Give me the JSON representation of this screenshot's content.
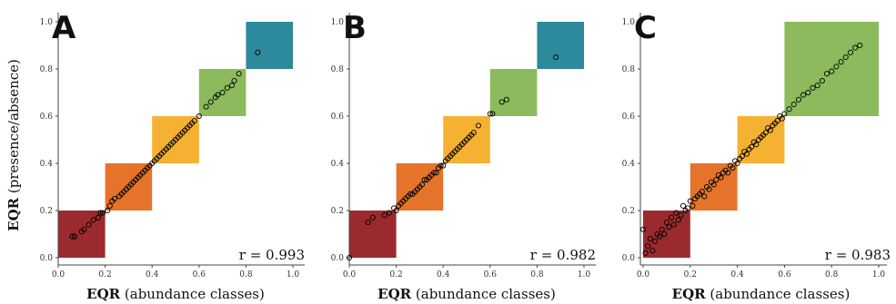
{
  "chart_data": {
    "type": "scatter",
    "ylabel_bold": "EQR",
    "ylabel_rest": " (presence/absence)",
    "xlabel_bold": "EQR",
    "xlabel_rest": " (abundance classes)",
    "xlim": [
      0,
      1
    ],
    "ylim": [
      0,
      1
    ],
    "ticks": [
      "0.0",
      "0.2",
      "0.4",
      "0.6",
      "0.8",
      "1.0"
    ],
    "tick_values": [
      0,
      0.2,
      0.4,
      0.6,
      0.8,
      1.0
    ],
    "grid": false,
    "class_colors": [
      "#9b2a2e",
      "#e5742a",
      "#f5b132",
      "#8cba5c",
      "#2c8a9c"
    ],
    "panels": [
      {
        "letter": "A",
        "r_text": "r = 0.993",
        "boxes": [
          [
            0.0,
            0.2
          ],
          [
            0.2,
            0.4
          ],
          [
            0.4,
            0.6
          ],
          [
            0.6,
            0.8
          ],
          [
            0.8,
            1.0
          ]
        ],
        "x": [
          0.06,
          0.07,
          0.1,
          0.11,
          0.13,
          0.15,
          0.17,
          0.18,
          0.19,
          0.21,
          0.22,
          0.23,
          0.24,
          0.26,
          0.27,
          0.28,
          0.29,
          0.3,
          0.31,
          0.32,
          0.33,
          0.34,
          0.35,
          0.36,
          0.37,
          0.38,
          0.39,
          0.4,
          0.41,
          0.42,
          0.43,
          0.44,
          0.45,
          0.46,
          0.47,
          0.48,
          0.49,
          0.5,
          0.51,
          0.52,
          0.53,
          0.54,
          0.55,
          0.56,
          0.57,
          0.58,
          0.6,
          0.63,
          0.65,
          0.67,
          0.68,
          0.7,
          0.72,
          0.74,
          0.75,
          0.77,
          0.85
        ],
        "y": [
          0.09,
          0.09,
          0.11,
          0.12,
          0.14,
          0.16,
          0.17,
          0.19,
          0.19,
          0.2,
          0.22,
          0.24,
          0.25,
          0.26,
          0.27,
          0.28,
          0.29,
          0.3,
          0.31,
          0.32,
          0.33,
          0.34,
          0.35,
          0.36,
          0.37,
          0.38,
          0.39,
          0.4,
          0.41,
          0.42,
          0.43,
          0.44,
          0.45,
          0.46,
          0.47,
          0.48,
          0.49,
          0.5,
          0.51,
          0.52,
          0.53,
          0.54,
          0.55,
          0.56,
          0.57,
          0.58,
          0.6,
          0.64,
          0.66,
          0.68,
          0.69,
          0.7,
          0.72,
          0.73,
          0.75,
          0.78,
          0.87
        ]
      },
      {
        "letter": "B",
        "r_text": "r = 0.982",
        "boxes": [
          [
            0.0,
            0.2
          ],
          [
            0.2,
            0.4
          ],
          [
            0.4,
            0.6
          ],
          [
            0.6,
            0.8
          ],
          [
            0.8,
            1.0
          ]
        ],
        "x": [
          0.0,
          0.08,
          0.1,
          0.15,
          0.17,
          0.19,
          0.2,
          0.21,
          0.22,
          0.23,
          0.24,
          0.25,
          0.26,
          0.27,
          0.28,
          0.29,
          0.3,
          0.31,
          0.32,
          0.33,
          0.34,
          0.35,
          0.36,
          0.37,
          0.38,
          0.39,
          0.4,
          0.41,
          0.42,
          0.43,
          0.44,
          0.45,
          0.46,
          0.47,
          0.48,
          0.49,
          0.5,
          0.51,
          0.52,
          0.53,
          0.55,
          0.6,
          0.61,
          0.65,
          0.67,
          0.88
        ],
        "y": [
          0.0,
          0.15,
          0.17,
          0.18,
          0.19,
          0.21,
          0.2,
          0.22,
          0.23,
          0.24,
          0.25,
          0.26,
          0.27,
          0.27,
          0.28,
          0.29,
          0.3,
          0.31,
          0.33,
          0.33,
          0.34,
          0.35,
          0.36,
          0.36,
          0.38,
          0.39,
          0.39,
          0.41,
          0.42,
          0.43,
          0.44,
          0.45,
          0.46,
          0.47,
          0.48,
          0.49,
          0.5,
          0.51,
          0.52,
          0.53,
          0.56,
          0.61,
          0.61,
          0.66,
          0.67,
          0.85
        ]
      },
      {
        "letter": "C",
        "r_text": "r = 0.983",
        "boxes": [
          [
            0.0,
            0.2
          ],
          [
            0.2,
            0.4
          ],
          [
            0.4,
            0.6
          ],
          [
            0.6,
            1.0
          ]
        ],
        "x": [
          0.0,
          0.01,
          0.02,
          0.03,
          0.04,
          0.05,
          0.06,
          0.07,
          0.08,
          0.09,
          0.1,
          0.11,
          0.12,
          0.13,
          0.14,
          0.15,
          0.16,
          0.17,
          0.18,
          0.19,
          0.2,
          0.21,
          0.22,
          0.23,
          0.24,
          0.25,
          0.26,
          0.27,
          0.28,
          0.29,
          0.3,
          0.31,
          0.32,
          0.33,
          0.34,
          0.35,
          0.36,
          0.37,
          0.38,
          0.39,
          0.4,
          0.41,
          0.42,
          0.43,
          0.44,
          0.45,
          0.46,
          0.47,
          0.48,
          0.49,
          0.5,
          0.51,
          0.52,
          0.53,
          0.54,
          0.55,
          0.56,
          0.57,
          0.58,
          0.59,
          0.6,
          0.62,
          0.64,
          0.66,
          0.68,
          0.7,
          0.72,
          0.74,
          0.76,
          0.78,
          0.8,
          0.82,
          0.84,
          0.86,
          0.88,
          0.9,
          0.92
        ],
        "y": [
          0.12,
          0.02,
          0.05,
          0.08,
          0.03,
          0.07,
          0.1,
          0.09,
          0.12,
          0.1,
          0.15,
          0.13,
          0.17,
          0.14,
          0.19,
          0.16,
          0.18,
          0.22,
          0.2,
          0.21,
          0.24,
          0.22,
          0.25,
          0.26,
          0.27,
          0.28,
          0.26,
          0.3,
          0.29,
          0.32,
          0.31,
          0.33,
          0.35,
          0.34,
          0.36,
          0.37,
          0.36,
          0.39,
          0.38,
          0.41,
          0.4,
          0.42,
          0.43,
          0.45,
          0.44,
          0.46,
          0.47,
          0.49,
          0.48,
          0.5,
          0.51,
          0.52,
          0.53,
          0.55,
          0.54,
          0.56,
          0.57,
          0.58,
          0.6,
          0.59,
          0.61,
          0.63,
          0.65,
          0.67,
          0.69,
          0.7,
          0.72,
          0.73,
          0.75,
          0.78,
          0.79,
          0.81,
          0.83,
          0.85,
          0.87,
          0.89,
          0.9
        ]
      }
    ]
  }
}
